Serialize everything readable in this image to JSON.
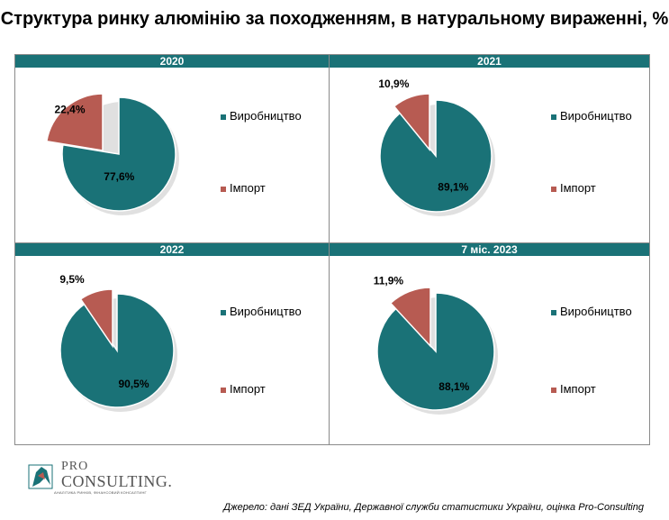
{
  "title": "Структура ринку алюмінію за походженням, в натуральному вираженні, %",
  "colors": {
    "production": "#1a7277",
    "import": "#b75b52",
    "header_bg": "#1a7277"
  },
  "chart_data": [
    {
      "type": "pie",
      "title": "2020",
      "categories": [
        "Виробництво",
        "Імпорт"
      ],
      "values": [
        77.6,
        22.4
      ],
      "labels": [
        "77,6%",
        "22,4%"
      ],
      "legend_position": "right"
    },
    {
      "type": "pie",
      "title": "2021",
      "categories": [
        "Виробництво",
        "Імпорт"
      ],
      "values": [
        89.1,
        10.9
      ],
      "labels": [
        "89,1%",
        "10,9%"
      ],
      "legend_position": "right"
    },
    {
      "type": "pie",
      "title": "2022",
      "categories": [
        "Виробництво",
        "Імпорт"
      ],
      "values": [
        90.5,
        9.5
      ],
      "labels": [
        "90,5%",
        "9,5%"
      ],
      "legend_position": "right"
    },
    {
      "type": "pie",
      "title": "7 міс. 2023",
      "categories": [
        "Виробництво",
        "Імпорт"
      ],
      "values": [
        88.1,
        11.9
      ],
      "labels": [
        "88,1%",
        "11,9%"
      ],
      "legend_position": "right"
    }
  ],
  "logo": {
    "line1": "PRO",
    "line2": "CONSULTING.",
    "tagline": "АНАЛІТИКА РИНКІВ, ФІНАНСОВИЙ КОНСАЛТИНГ",
    "alt": "Pro-Consulting logo"
  },
  "source": "Джерело: дані ЗЕД України, Державної служби статистики України, оцінка Pro-Consulting"
}
